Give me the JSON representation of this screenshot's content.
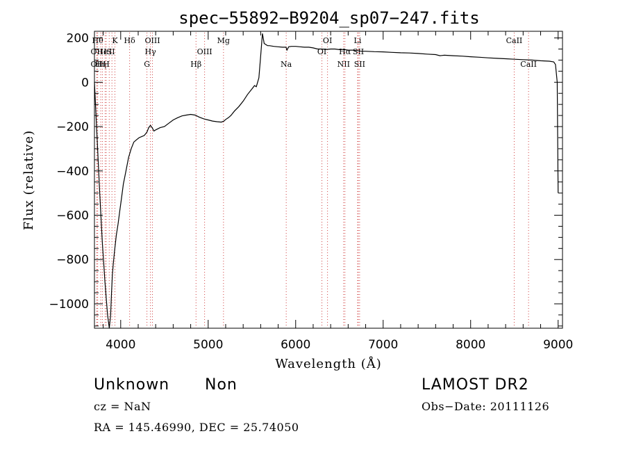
{
  "chart_data": {
    "type": "line",
    "title": "spec−55892−B9204_sp07−247.fits",
    "xlabel": "Wavelength (Å)",
    "ylabel": "Flux (relative)",
    "xlim": [
      3700,
      9050
    ],
    "ylim": [
      -1110,
      230
    ],
    "xticks": [
      4000,
      5000,
      6000,
      7000,
      8000,
      9000
    ],
    "xtick_labels": [
      "4000",
      "5000",
      "6000",
      "7000",
      "8000",
      "9000"
    ],
    "yticks": [
      -1000,
      -800,
      -600,
      -400,
      -200,
      0,
      200
    ],
    "ytick_labels": [
      "−1000",
      "−800",
      "−600",
      "−400",
      "−200",
      "0",
      "200"
    ],
    "grid": false,
    "series": [
      {
        "x": [
          3700,
          3730,
          3760,
          3790,
          3820,
          3850,
          3870,
          3885,
          3895,
          3905,
          3915,
          3930,
          3950,
          3970,
          3990,
          4010,
          4030,
          4060,
          4090,
          4120,
          4150,
          4180,
          4210,
          4240,
          4270,
          4300,
          4320,
          4340,
          4360,
          4380,
          4400,
          4450,
          4500,
          4550,
          4600,
          4650,
          4700,
          4750,
          4800,
          4850,
          4900,
          4950,
          5000,
          5050,
          5100,
          5150,
          5180,
          5200,
          5230,
          5260,
          5300,
          5350,
          5400,
          5450,
          5500,
          5530,
          5550,
          5580,
          5600,
          5620,
          5640,
          5660,
          5680,
          5700,
          5750,
          5800,
          5850,
          5890,
          5900,
          5920,
          5950,
          6000,
          6050,
          6100,
          6150,
          6200,
          6250,
          6300,
          6350,
          6400,
          6450,
          6500,
          6550,
          6600,
          6650,
          6700,
          6750,
          6800,
          6900,
          7000,
          7100,
          7200,
          7300,
          7400,
          7500,
          7600,
          7650,
          7700,
          7800,
          7900,
          8000,
          8100,
          8200,
          8300,
          8400,
          8500,
          8600,
          8700,
          8800,
          8900,
          8950,
          8970,
          8990,
          9000
        ],
        "y": [
          0,
          -250,
          -500,
          -720,
          -900,
          -1050,
          -1110,
          -1050,
          -950,
          -870,
          -820,
          -760,
          -690,
          -640,
          -580,
          -520,
          -460,
          -400,
          -340,
          -300,
          -270,
          -260,
          -250,
          -245,
          -240,
          -225,
          -205,
          -195,
          -205,
          -220,
          -215,
          -205,
          -200,
          -185,
          -170,
          -160,
          -152,
          -148,
          -145,
          -148,
          -158,
          -165,
          -170,
          -175,
          -178,
          -180,
          -175,
          -168,
          -160,
          -150,
          -130,
          -110,
          -85,
          -55,
          -30,
          -15,
          -20,
          20,
          120,
          220,
          175,
          170,
          165,
          165,
          162,
          160,
          158,
          158,
          145,
          160,
          162,
          162,
          160,
          158,
          158,
          155,
          150,
          150,
          148,
          150,
          150,
          147,
          148,
          145,
          145,
          143,
          140,
          140,
          138,
          137,
          135,
          133,
          132,
          130,
          127,
          125,
          120,
          122,
          120,
          118,
          115,
          113,
          110,
          108,
          106,
          104,
          102,
          100,
          97,
          95,
          92,
          80,
          0,
          -500
        ]
      }
    ],
    "line_marks": [
      {
        "w": 3737,
        "row": 1,
        "label": "Hθ"
      },
      {
        "w": 3727,
        "row": 2,
        "label": "OII"
      },
      {
        "w": 3727,
        "row": 3,
        "label": "OII"
      },
      {
        "w": 3772,
        "row": 3,
        "label": "Hη"
      },
      {
        "w": 3835,
        "row": 3,
        "label": "H"
      },
      {
        "w": 3934,
        "row": 1,
        "label": "K"
      },
      {
        "w": 3791,
        "row": 2,
        "label": "He"
      },
      {
        "w": 3822,
        "row": 2,
        "label": "I"
      },
      {
        "w": 3869,
        "row": 2,
        "label": "S"
      },
      {
        "w": 3900,
        "row": 2,
        "label": "II"
      },
      {
        "w": 4102,
        "row": 1,
        "label": "Hδ"
      },
      {
        "w": 4300,
        "row": 3,
        "label": "G"
      },
      {
        "w": 4340,
        "row": 2,
        "label": "Hγ"
      },
      {
        "w": 4363,
        "row": 1,
        "label": "OIII"
      },
      {
        "w": 4861,
        "row": 3,
        "label": "Hβ"
      },
      {
        "w": 4959,
        "row": 2,
        "label": "OIII"
      },
      {
        "w": 5175,
        "row": 1,
        "label": "Mg"
      },
      {
        "w": 5892,
        "row": 3,
        "label": "Na"
      },
      {
        "w": 6300,
        "row": 2,
        "label": "OI"
      },
      {
        "w": 6364,
        "row": 1,
        "label": "OI"
      },
      {
        "w": 6548,
        "row": 3,
        "label": "NII"
      },
      {
        "w": 6563,
        "row": 2,
        "label": "Hα"
      },
      {
        "w": 6708,
        "row": 1,
        "label": "Li"
      },
      {
        "w": 6716,
        "row": 2,
        "label": "SII"
      },
      {
        "w": 6731,
        "row": 3,
        "label": "SII"
      },
      {
        "w": 8498,
        "row": 1,
        "label": "CaII"
      },
      {
        "w": 8662,
        "row": 3,
        "label": "CaII"
      }
    ]
  },
  "info": {
    "object_class": "Unknown",
    "subclass": "Non",
    "survey": "LAMOST DR2",
    "cz": "cz = NaN",
    "obs_date": "Obs−Date: 20111126",
    "coords": "RA = 145.46990, DEC =  25.74050"
  },
  "colors": {
    "spectrum": "#000000",
    "line_marks": "#d04040"
  }
}
